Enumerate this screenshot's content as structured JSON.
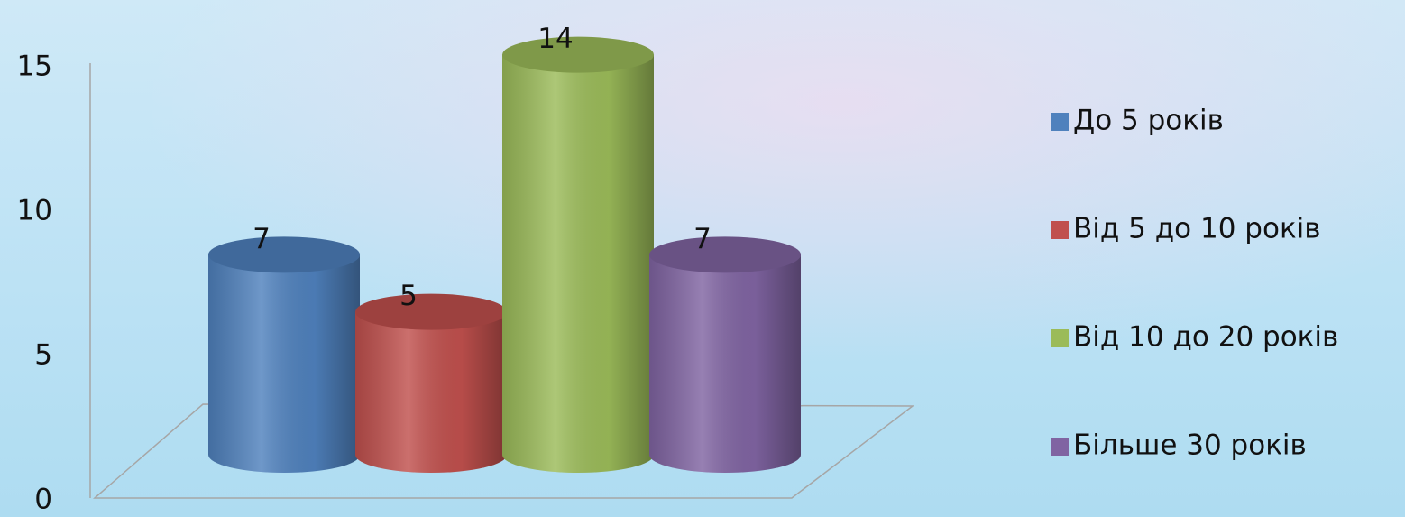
{
  "chart_data": {
    "type": "bar",
    "series": [
      {
        "name": "До 5 років",
        "color": "#4f81bd",
        "values": [
          7
        ]
      },
      {
        "name": "Від 5 до 10 років",
        "color": "#c0504d",
        "values": [
          5
        ]
      },
      {
        "name": "Від 10 до 20 років",
        "color": "#9bbb59",
        "values": [
          14
        ]
      },
      {
        "name": "Більше 30 років",
        "color": "#8064a2",
        "values": [
          7
        ]
      }
    ],
    "ylim": [
      0,
      15
    ],
    "yticks": [
      0,
      5,
      10,
      15
    ],
    "legend": "right"
  }
}
